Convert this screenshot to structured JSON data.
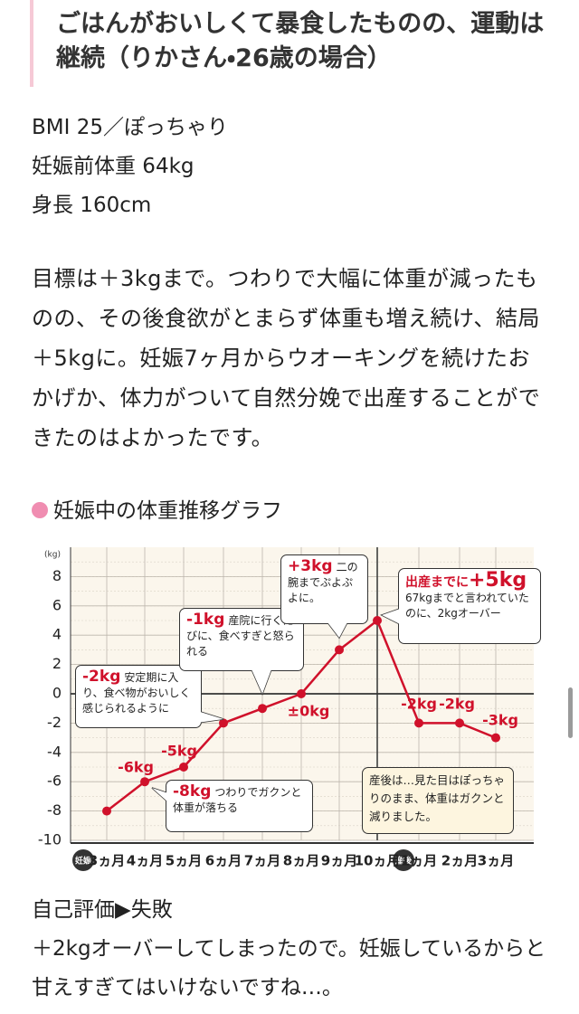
{
  "header": {
    "title": "ごはんがおいしくて暴食したものの、運動は継続（りかさん・26歳の場合）"
  },
  "profile": [
    "BMI 25／ぽっちゃり",
    "妊娠前体重 64kg",
    "身長 160cm"
  ],
  "body": "目標は＋3kgまで。つわりで大幅に体重が減ったものの、その後食欲がとまらず体重も増え続け、結局＋5kgに。妊娠7ヶ月からウオーキングを続けたおかげか、体力がついて自然分娩で出産することができたのはよかったです。",
  "section_title": "妊娠中の体重推移グラフ",
  "chart_data": {
    "type": "line",
    "y_unit": "(kg)",
    "categories": [
      "3ヵ月",
      "4ヵ月",
      "5ヵ月",
      "6ヵ月",
      "7ヵ月",
      "8ヵ月",
      "9ヵ月",
      "10ヵ月",
      "1ヵ月",
      "2ヵ月",
      "3ヵ月"
    ],
    "values": [
      -8,
      -6,
      -5,
      -2,
      -1,
      0,
      3,
      5,
      -2,
      -2,
      -3
    ],
    "value_labels": [
      "-8kg",
      "-6kg",
      "-5kg",
      "-2kg",
      "-1kg",
      "±0kg",
      "+3kg",
      "+5kg",
      "-2kg",
      "-2kg",
      "-3kg"
    ],
    "color": "#d0112b",
    "ylim": [
      -10,
      10
    ],
    "yticks": [
      -10,
      -8,
      -6,
      -4,
      -2,
      0,
      2,
      4,
      6,
      8
    ],
    "grid": true,
    "phase_labels": [
      "妊娠",
      "産後"
    ],
    "annotations": [
      "つわりでガクンと体重が落ちる",
      "安定期に入り、食べ物がおいしく感じられるように",
      "産院に行くたびに、食べすぎと怒られる",
      "二の腕までぷよぷよに。",
      "出産までに",
      "67kgまでと言われていたのに、2kgオーバー",
      "産後は…見た目はぽっちゃりのまま、体重はガクンと減りました。"
    ]
  },
  "evaluation": {
    "title": "自己評価▶失敗",
    "text": "＋2kgオーバーしてしまったので。妊娠しているからと甘えすぎてはいけないですね…。"
  }
}
